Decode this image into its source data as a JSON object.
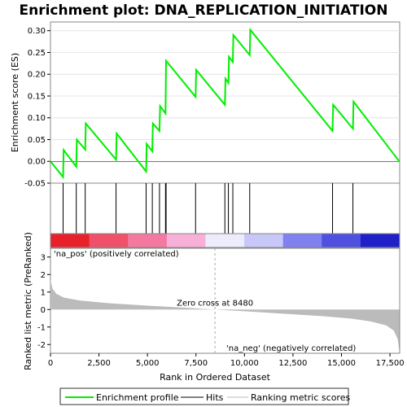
{
  "chart_data": {
    "type": "line",
    "title": "Enrichment plot: DNA_REPLICATION_INITIATION",
    "es_panel": {
      "ylabel": "Enrichment score (ES)",
      "ylim": [
        -0.05,
        0.32
      ],
      "yticks": [
        "-0.05",
        "0.00",
        "0.05",
        "0.10",
        "0.15",
        "0.20",
        "0.25",
        "0.30"
      ],
      "ytick_values": [
        -0.05,
        0.0,
        0.05,
        0.1,
        0.15,
        0.2,
        0.25,
        0.3
      ],
      "series": [
        {
          "name": "Enrichment profile",
          "color": "#00ee00",
          "x": [
            0,
            650,
            680,
            1330,
            1360,
            1790,
            1820,
            3380,
            3410,
            4930,
            4960,
            5250,
            5280,
            5620,
            5650,
            5930,
            5945,
            5960,
            7480,
            7510,
            8990,
            9020,
            9170,
            9200,
            9400,
            9430,
            10270,
            10300,
            14540,
            14570,
            15590,
            15620,
            17980
          ],
          "y": [
            0.0,
            -0.036,
            0.026,
            -0.012,
            0.05,
            0.027,
            0.087,
            0.004,
            0.064,
            -0.023,
            0.04,
            0.023,
            0.087,
            0.07,
            0.127,
            0.11,
            0.17,
            0.231,
            0.148,
            0.21,
            0.13,
            0.19,
            0.18,
            0.24,
            0.228,
            0.29,
            0.244,
            0.302,
            0.07,
            0.13,
            0.075,
            0.137,
            0.0
          ]
        }
      ]
    },
    "hits": [
      650,
      1330,
      1790,
      3380,
      4930,
      5250,
      5620,
      5930,
      5960,
      7480,
      8990,
      9170,
      9400,
      10270,
      14540,
      15590
    ],
    "rank_panel": {
      "ylabel": "Ranked list metric (PreRanked)",
      "ylim": [
        -2.5,
        3.5
      ],
      "yticks": [
        "-2",
        "-1",
        "0",
        "1",
        "2",
        "3"
      ],
      "ytick_values": [
        -2,
        -1,
        0,
        1,
        2,
        3
      ],
      "xlabel": "Rank in Ordered Dataset",
      "xlim": [
        0,
        18000
      ],
      "xticks": [
        "0",
        "2,500",
        "5,000",
        "7,500",
        "10,000",
        "12,500",
        "15,000",
        "17,500"
      ],
      "xtick_values": [
        0,
        2500,
        5000,
        7500,
        10000,
        12500,
        15000,
        17500
      ],
      "metric_points": [
        [
          0,
          1.7
        ],
        [
          100,
          1.2
        ],
        [
          300,
          0.9
        ],
        [
          700,
          0.68
        ],
        [
          1500,
          0.52
        ],
        [
          3000,
          0.36
        ],
        [
          5000,
          0.22
        ],
        [
          7000,
          0.1
        ],
        [
          8480,
          0.0
        ],
        [
          10000,
          -0.1
        ],
        [
          12000,
          -0.24
        ],
        [
          14000,
          -0.38
        ],
        [
          15500,
          -0.52
        ],
        [
          16500,
          -0.68
        ],
        [
          17300,
          -0.9
        ],
        [
          17700,
          -1.2
        ],
        [
          17900,
          -1.7
        ],
        [
          17980,
          -2.35
        ]
      ],
      "zero_cross_label": "Zero cross at 8480",
      "zero_cross": 8480,
      "pos_label": "'na_pos' (positively correlated)",
      "neg_label": "'na_neg' (negatively correlated)"
    },
    "legend": {
      "placement": "bottom",
      "entries": [
        {
          "label": "Enrichment profile",
          "color": "#00ee00"
        },
        {
          "label": "Hits",
          "color": "#000000"
        },
        {
          "label": "Ranking metric scores",
          "color": "#bbbbbb"
        }
      ]
    },
    "colors": {
      "profile": "#00ee00",
      "metric_fill": "#bbbbbb",
      "pos_text": "#cc0000",
      "neg_text": "#0000cc",
      "bar_colors": [
        "#e8202a",
        "#f0506a",
        "#f478a0",
        "#f8b0d8",
        "#ececfc",
        "#c8c8f8",
        "#8080f0",
        "#5050e0",
        "#2020c8"
      ]
    }
  }
}
